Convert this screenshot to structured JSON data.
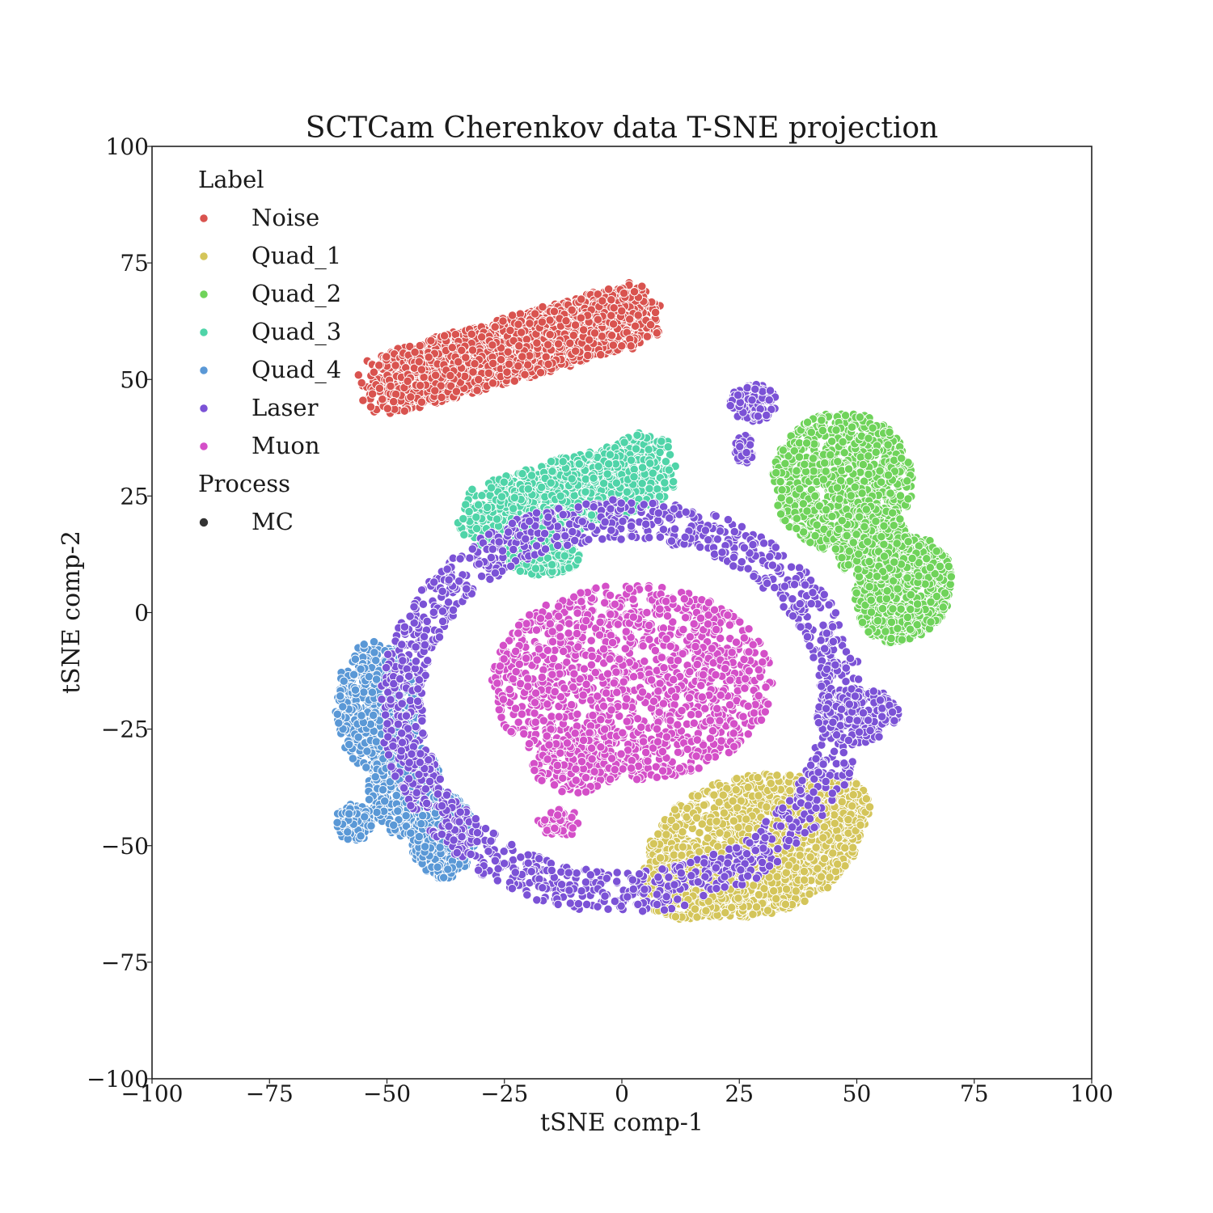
{
  "chart_data": {
    "type": "scatter",
    "title": "SCTCam Cherenkov data T-SNE projection",
    "xlabel": "tSNE comp-1",
    "ylabel": "tSNE comp-2",
    "xlim": [
      -100,
      100
    ],
    "ylim": [
      -100,
      100
    ],
    "xticks": [
      -100,
      -75,
      -50,
      -25,
      0,
      25,
      50,
      75,
      100
    ],
    "yticks": [
      -100,
      -75,
      -50,
      -25,
      0,
      25,
      50,
      75,
      100
    ],
    "xtick_labels": [
      "−100",
      "−75",
      "−50",
      "−25",
      "0",
      "25",
      "50",
      "75",
      "100"
    ],
    "ytick_labels": [
      "−100",
      "−75",
      "−50",
      "−25",
      "0",
      "25",
      "50",
      "75",
      "100"
    ],
    "grid": false,
    "legend_placement": "top-left",
    "legend": {
      "label_title": "Label",
      "process_title": "Process",
      "process_entries": [
        {
          "name": "MC",
          "color": "#333333"
        }
      ]
    },
    "series": [
      {
        "name": "Noise",
        "color": "#d9534f",
        "regions": [
          {
            "shape": "capsule",
            "x1": -50,
            "y1": 49,
            "x2": 3,
            "y2": 64,
            "radius": 7,
            "count": 2600
          }
        ]
      },
      {
        "name": "Quad_1",
        "color": "#d4c55a",
        "regions": [
          {
            "shape": "ellipse",
            "cx": 28,
            "cy": -50,
            "rx": 23,
            "ry": 15,
            "angle": 12,
            "count": 1500
          },
          {
            "shape": "ellipse",
            "cx": 15,
            "cy": -58,
            "rx": 12,
            "ry": 8,
            "angle": 0,
            "count": 350
          },
          {
            "shape": "ellipse",
            "cx": 45,
            "cy": -42,
            "rx": 8,
            "ry": 7,
            "angle": 0,
            "count": 250
          }
        ]
      },
      {
        "name": "Quad_2",
        "color": "#6fd35a",
        "regions": [
          {
            "shape": "ellipse",
            "cx": 47,
            "cy": 28,
            "rx": 15,
            "ry": 15,
            "angle": 0,
            "count": 900
          },
          {
            "shape": "ellipse",
            "cx": 60,
            "cy": 5,
            "rx": 10,
            "ry": 12,
            "angle": -25,
            "count": 700
          },
          {
            "shape": "ellipse",
            "cx": 53,
            "cy": 15,
            "rx": 8,
            "ry": 8,
            "angle": 0,
            "count": 300
          }
        ]
      },
      {
        "name": "Quad_3",
        "color": "#4fd4a8",
        "regions": [
          {
            "shape": "capsule",
            "x1": -28,
            "y1": 20,
            "x2": 6,
            "y2": 31,
            "radius": 8,
            "count": 1600
          },
          {
            "shape": "ellipse",
            "cx": -17,
            "cy": 12,
            "rx": 8,
            "ry": 4,
            "angle": 0,
            "count": 200
          }
        ]
      },
      {
        "name": "Quad_4",
        "color": "#5a98d6",
        "regions": [
          {
            "shape": "ellipse",
            "cx": -52,
            "cy": -20,
            "rx": 9,
            "ry": 14,
            "angle": 0,
            "count": 500
          },
          {
            "shape": "ellipse",
            "cx": -46,
            "cy": -38,
            "rx": 8,
            "ry": 10,
            "angle": 0,
            "count": 450
          },
          {
            "shape": "ellipse",
            "cx": -38,
            "cy": -48,
            "rx": 7,
            "ry": 9,
            "angle": 0,
            "count": 450
          },
          {
            "shape": "ellipse",
            "cx": -57,
            "cy": -45,
            "rx": 4,
            "ry": 4,
            "angle": 0,
            "count": 120
          }
        ]
      },
      {
        "name": "Laser",
        "color": "#7b52d6",
        "regions": [
          {
            "shape": "ring",
            "cx": 0,
            "cy": -20,
            "rx": 47,
            "ry": 40,
            "width": 9,
            "count": 1500
          },
          {
            "shape": "ellipse",
            "cx": 28,
            "cy": 45,
            "rx": 5,
            "ry": 4,
            "angle": 0,
            "count": 110
          },
          {
            "shape": "ellipse",
            "cx": 26,
            "cy": 35,
            "rx": 2,
            "ry": 3,
            "angle": 0,
            "count": 50
          },
          {
            "shape": "ellipse",
            "cx": 50,
            "cy": -22,
            "rx": 9,
            "ry": 6,
            "angle": 0,
            "count": 180
          }
        ]
      },
      {
        "name": "Muon",
        "color": "#d44fc8",
        "regions": [
          {
            "shape": "ellipse",
            "cx": 2,
            "cy": -15,
            "rx": 30,
            "ry": 21,
            "angle": 0,
            "count": 1400
          },
          {
            "shape": "ellipse",
            "cx": -10,
            "cy": -33,
            "rx": 9,
            "ry": 6,
            "angle": 0,
            "count": 160
          },
          {
            "shape": "ellipse",
            "cx": -13,
            "cy": -45,
            "rx": 5,
            "ry": 3,
            "angle": 0,
            "count": 50
          }
        ]
      }
    ]
  }
}
